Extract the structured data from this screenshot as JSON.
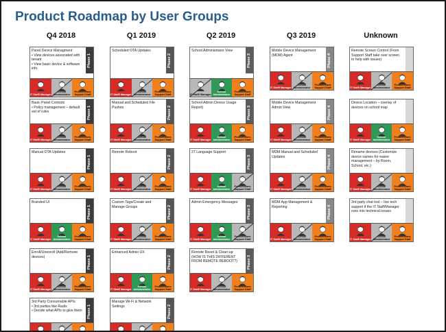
{
  "title": "Product Roadmap by User Groups",
  "colors": {
    "title": "#2a5d8a",
    "phase1": "#3c3c3c",
    "phase2": "#555555",
    "phase3": "#5c5c5c",
    "phase4": "#888888",
    "unknown": "#d8d8d8",
    "it_staff": "#d62b26",
    "admin": "#2e9a55",
    "support": "#f07f1c",
    "inactive": "#b8b8b8"
  },
  "tile_labels": {
    "it": "IT Staff/ Manager",
    "admin": "School Administrator",
    "support": "Prometheans Support Staff"
  },
  "columns": [
    {
      "header": "Q4 2018",
      "cards": [
        {
          "lines": [
            "Panel Device Managment",
            "• View devices associated with tenant",
            "• View basic device & software info"
          ],
          "phase": "Phase 1",
          "ptone": "phase1",
          "it": true,
          "admin": false,
          "support": true,
          "h": 72
        },
        {
          "lines": [
            "Basic Panel Controls",
            "• Policy management – default set of rules"
          ],
          "phase": "Phase 1",
          "ptone": "phase1",
          "it": true,
          "admin": false,
          "support": true,
          "h": 62
        },
        {
          "lines": [
            "Manual OTA Updates"
          ],
          "phase": "Phase 1",
          "ptone": "phase1",
          "it": true,
          "admin": false,
          "support": true,
          "h": 62
        },
        {
          "lines": [
            "Branded UI"
          ],
          "phase": "Phase 1",
          "ptone": "phase1",
          "it": true,
          "admin": true,
          "support": true,
          "h": 62
        },
        {
          "lines": [
            "Enroll/Unenroll (Add/Remove devices)"
          ],
          "phase": "Phase 1",
          "ptone": "phase1",
          "it": true,
          "admin": false,
          "support": true,
          "h": 62
        },
        {
          "lines": [
            "3rd Party Consumable APIs",
            "• 3rd parties like Radix",
            "• Decide what APIs to give them"
          ],
          "phase": "Phase 1",
          "ptone": "phase1",
          "it": true,
          "admin": false,
          "support": true,
          "h": 62
        }
      ]
    },
    {
      "header": "Q1 2019",
      "cards": [
        {
          "lines": [
            "Scheduled OTA Updates"
          ],
          "phase": "Phase 2",
          "ptone": "phase2",
          "it": true,
          "admin": false,
          "support": true,
          "h": 72
        },
        {
          "lines": [
            "Manual and Scheduled File Pushes"
          ],
          "phase": "Phase 2",
          "ptone": "phase2",
          "it": true,
          "admin": false,
          "support": true,
          "h": 62
        },
        {
          "lines": [
            "Remote Reboot"
          ],
          "phase": "Phase 2",
          "ptone": "phase2",
          "it": true,
          "admin": false,
          "support": true,
          "h": 62
        },
        {
          "lines": [
            "Custom Tags/Create and Manage Groups"
          ],
          "phase": "Phase 2",
          "ptone": "phase2",
          "it": true,
          "admin": false,
          "support": true,
          "h": 62
        },
        {
          "lines": [
            "Enhanced Admin UX"
          ],
          "phase": "Phase 2",
          "ptone": "phase2",
          "it": true,
          "admin": true,
          "support": true,
          "h": 62
        },
        {
          "lines": [
            "Manage Wi-Fi & Network Settings"
          ],
          "phase": "Phase 2",
          "ptone": "phase2",
          "it": true,
          "admin": false,
          "support": true,
          "h": 62
        }
      ]
    },
    {
      "header": "Q2 2019",
      "cards": [
        {
          "lines": [
            "School Administrator View"
          ],
          "phase": "Phase 3",
          "ptone": "phase3",
          "it": false,
          "admin": true,
          "support": true,
          "h": 72
        },
        {
          "lines": [
            "School Admin Device Usage Report)"
          ],
          "phase": "Phase 3",
          "ptone": "phase3",
          "it": true,
          "admin": true,
          "support": true,
          "h": 62
        },
        {
          "lines": [
            "27 Language Support"
          ],
          "phase": "Phase 3",
          "ptone": "phase3",
          "it": true,
          "admin": true,
          "support": false,
          "h": 62
        },
        {
          "lines": [
            "Admin Emergency Messages"
          ],
          "phase": "Phase 3",
          "ptone": "phase3",
          "it": true,
          "admin": true,
          "support": false,
          "h": 62
        },
        {
          "lines": [
            "Remote Reset & Clean-up (HOW IS THIS DIFFERENT FROM REMOTE REBOOT?)"
          ],
          "phase": "Phase 3",
          "ptone": "phase3",
          "it": true,
          "admin": false,
          "support": true,
          "h": 62
        }
      ]
    },
    {
      "header": "Q3 2019",
      "cards": [
        {
          "lines": [
            "Mobile Device Management (MDM) Agent"
          ],
          "phase": "Phase 4",
          "ptone": "phase4",
          "it": true,
          "admin": false,
          "support": true,
          "h": 62
        },
        {
          "lines": [
            "Mobile Device Management Admin View"
          ],
          "phase": "Phase 4",
          "ptone": "phase4",
          "it": true,
          "admin": false,
          "support": true,
          "h": 62
        },
        {
          "lines": [
            "MDM Manual and Scheduled Updates"
          ],
          "phase": "Phase 4",
          "ptone": "phase4",
          "it": true,
          "admin": false,
          "support": true,
          "h": 62
        },
        {
          "lines": [
            "MDM App Management & Reporting"
          ],
          "phase": "Phase 4",
          "ptone": "phase4",
          "it": true,
          "admin": false,
          "support": true,
          "h": 62
        }
      ]
    },
    {
      "header": "Unknown",
      "cards": [
        {
          "lines": [
            "Remote Screen Control (From Support Staff take over screen to help with issues)"
          ],
          "phase": "",
          "ptone": "unknown",
          "it": true,
          "admin": false,
          "support": true,
          "h": 62
        },
        {
          "lines": [
            "Device Location – overlay of devices on school map"
          ],
          "phase": "",
          "ptone": "unknown",
          "it": true,
          "admin": true,
          "support": true,
          "h": 62
        },
        {
          "lines": [
            "Rename devices (Customize device names for easier management – by Room, School, etc.)"
          ],
          "phase": "",
          "ptone": "unknown",
          "it": true,
          "admin": false,
          "support": true,
          "h": 62
        },
        {
          "lines": [
            "3rd party chat tool – live tech support if the IT Staff/Manager runs into technical issues"
          ],
          "phase": "",
          "ptone": "unknown",
          "it": true,
          "admin": false,
          "support": true,
          "h": 62
        }
      ]
    }
  ]
}
